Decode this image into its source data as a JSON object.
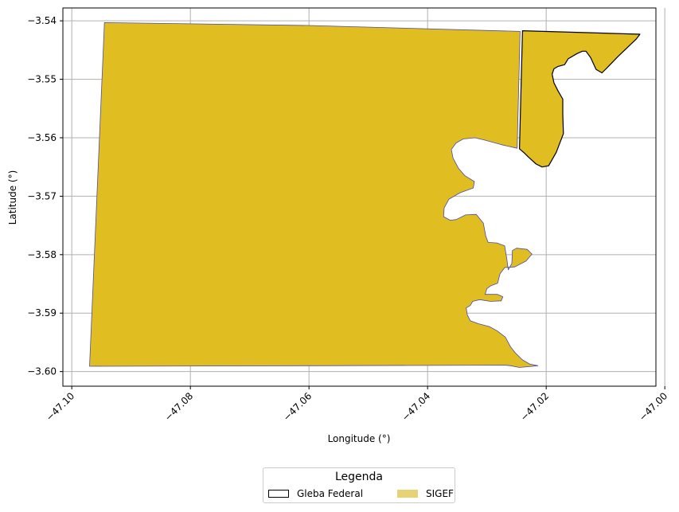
{
  "chart_data": {
    "type": "map",
    "xlabel": "Longitude (°)",
    "ylabel": "Latitude (°)",
    "xlim": [
      -47.1015,
      -47.0015
    ],
    "ylim": [
      -3.6025,
      -3.5378
    ],
    "xticks": [
      -47.1,
      -47.08,
      -47.06,
      -47.04,
      -47.02,
      -47.0
    ],
    "xtick_labels": [
      "−47.10",
      "−47.08",
      "−47.06",
      "−47.04",
      "−47.02",
      "−47.00"
    ],
    "yticks": [
      -3.54,
      -3.55,
      -3.56,
      -3.57,
      -3.58,
      -3.59,
      -3.6
    ],
    "ytick_labels": [
      "−3.54",
      "−3.55",
      "−3.56",
      "−3.57",
      "−3.58",
      "−3.59",
      "−3.60"
    ],
    "grid": true,
    "legend": {
      "title": "Legenda",
      "placement": "below",
      "entries": [
        {
          "label": "Gleba Federal",
          "style": "outline",
          "color": "#000000"
        },
        {
          "label": "SIGEF",
          "style": "fill",
          "color": "#e8d374"
        }
      ]
    },
    "layers": [
      {
        "name": "SIGEF",
        "fill": "#e0bd20",
        "stroke": "#4c4ca6",
        "polygon": [
          [
            -47.0945,
            -3.5403
          ],
          [
            -47.06,
            -3.5408
          ],
          [
            -47.0244,
            -3.5418
          ],
          [
            -47.0249,
            -3.5618
          ],
          [
            -47.0275,
            -3.5612
          ],
          [
            -47.0304,
            -3.5604
          ],
          [
            -47.032,
            -3.56
          ],
          [
            -47.034,
            -3.5602
          ],
          [
            -47.0352,
            -3.5609
          ],
          [
            -47.036,
            -3.562
          ],
          [
            -47.0357,
            -3.5635
          ],
          [
            -47.0348,
            -3.5652
          ],
          [
            -47.0337,
            -3.5665
          ],
          [
            -47.0321,
            -3.5675
          ],
          [
            -47.0323,
            -3.5686
          ],
          [
            -47.0345,
            -3.5694
          ],
          [
            -47.0364,
            -3.5705
          ],
          [
            -47.0372,
            -3.572
          ],
          [
            -47.0373,
            -3.5735
          ],
          [
            -47.0362,
            -3.5741
          ],
          [
            -47.0352,
            -3.574
          ],
          [
            -47.0336,
            -3.5732
          ],
          [
            -47.0318,
            -3.5731
          ],
          [
            -47.0306,
            -3.5746
          ],
          [
            -47.0302,
            -3.5768
          ],
          [
            -47.0298,
            -3.5779
          ],
          [
            -47.0283,
            -3.578
          ],
          [
            -47.027,
            -3.5785
          ],
          [
            -47.0266,
            -3.581
          ],
          [
            -47.0264,
            -3.5826
          ],
          [
            -47.0258,
            -3.5815
          ],
          [
            -47.0257,
            -3.5793
          ],
          [
            -47.025,
            -3.5789
          ],
          [
            -47.0232,
            -3.5791
          ],
          [
            -47.0224,
            -3.5799
          ],
          [
            -47.0234,
            -3.5811
          ],
          [
            -47.0253,
            -3.5821
          ],
          [
            -47.027,
            -3.5822
          ],
          [
            -47.0278,
            -3.5833
          ],
          [
            -47.0282,
            -3.5849
          ],
          [
            -47.0293,
            -3.5853
          ],
          [
            -47.03,
            -3.5858
          ],
          [
            -47.0303,
            -3.5868
          ],
          [
            -47.0282,
            -3.5868
          ],
          [
            -47.0273,
            -3.5872
          ],
          [
            -47.0276,
            -3.5879
          ],
          [
            -47.0294,
            -3.588
          ],
          [
            -47.0312,
            -3.5877
          ],
          [
            -47.0324,
            -3.588
          ],
          [
            -47.0328,
            -3.5887
          ],
          [
            -47.0335,
            -3.5891
          ],
          [
            -47.0333,
            -3.5903
          ],
          [
            -47.0328,
            -3.5913
          ],
          [
            -47.0315,
            -3.5918
          ],
          [
            -47.0296,
            -3.5923
          ],
          [
            -47.0283,
            -3.593
          ],
          [
            -47.0269,
            -3.5941
          ],
          [
            -47.026,
            -3.5958
          ],
          [
            -47.0252,
            -3.5968
          ],
          [
            -47.024,
            -3.598
          ],
          [
            -47.0228,
            -3.5987
          ],
          [
            -47.0214,
            -3.599
          ],
          [
            -47.0245,
            -3.5993
          ],
          [
            -47.026,
            -3.599
          ],
          [
            -47.027,
            -3.5989
          ],
          [
            -47.0595,
            -3.599
          ],
          [
            -47.097,
            -3.5991
          ]
        ]
      },
      {
        "name": "Gleba Federal",
        "fill": "#e0bd20",
        "stroke": "#000000",
        "polygon": [
          [
            -47.024,
            -3.5417
          ],
          [
            -47.0042,
            -3.5423
          ],
          [
            -47.0048,
            -3.5431
          ],
          [
            -47.008,
            -3.5462
          ],
          [
            -47.0096,
            -3.5479
          ],
          [
            -47.0106,
            -3.5489
          ],
          [
            -47.0116,
            -3.5483
          ],
          [
            -47.0125,
            -3.5463
          ],
          [
            -47.0133,
            -3.5452
          ],
          [
            -47.0139,
            -3.5452
          ],
          [
            -47.0148,
            -3.5456
          ],
          [
            -47.0163,
            -3.5465
          ],
          [
            -47.0169,
            -3.5475
          ],
          [
            -47.018,
            -3.5478
          ],
          [
            -47.0187,
            -3.5482
          ],
          [
            -47.019,
            -3.5491
          ],
          [
            -47.0187,
            -3.5506
          ],
          [
            -47.018,
            -3.552
          ],
          [
            -47.0172,
            -3.5534
          ],
          [
            -47.0172,
            -3.556
          ],
          [
            -47.0171,
            -3.5593
          ],
          [
            -47.0183,
            -3.5625
          ],
          [
            -47.0196,
            -3.5648
          ],
          [
            -47.0207,
            -3.565
          ],
          [
            -47.0217,
            -3.5645
          ],
          [
            -47.023,
            -3.5633
          ],
          [
            -47.0237,
            -3.5626
          ],
          [
            -47.0245,
            -3.5619
          ]
        ]
      }
    ]
  }
}
